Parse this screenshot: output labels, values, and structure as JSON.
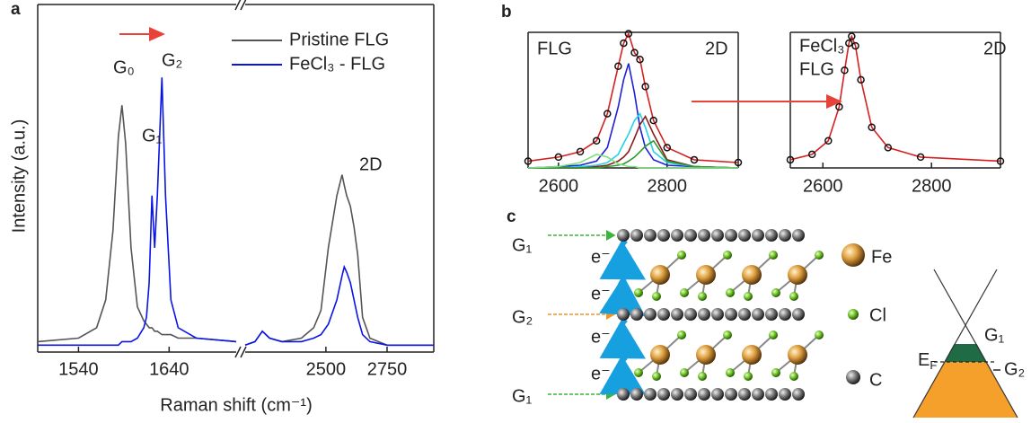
{
  "chart_data": [
    {
      "type": "line",
      "panel": "a",
      "xlabel": "Raman shift (cm⁻¹)",
      "ylabel": "Intensity (a.u.)",
      "legend": "upper right",
      "x": [
        1495,
        1540,
        1560,
        1570,
        1578,
        1584,
        1588,
        1592,
        1598,
        1605,
        1612,
        1615,
        1618,
        1621,
        1624,
        1627,
        1632,
        1636,
        1642,
        1650,
        1670,
        1714
      ],
      "xlim": [
        1495,
        1714
      ],
      "xticks": [
        1540,
        1640
      ],
      "ylim": [
        0,
        1
      ],
      "series": [
        {
          "name": "Pristine FLG",
          "color": "#555555",
          "values": [
            0.03,
            0.04,
            0.07,
            0.15,
            0.35,
            0.62,
            0.71,
            0.6,
            0.3,
            0.13,
            0.09,
            0.08,
            0.07,
            0.07,
            0.06,
            0.06,
            0.05,
            0.05,
            0.05,
            0.04,
            0.04,
            0.03
          ]
        },
        {
          "name": "FeCl₃ - FLG",
          "color": "#0a14e6",
          "values": [
            0.02,
            0.02,
            0.02,
            0.02,
            0.02,
            0.02,
            0.03,
            0.03,
            0.03,
            0.04,
            0.07,
            0.1,
            0.2,
            0.45,
            0.3,
            0.45,
            0.79,
            0.45,
            0.15,
            0.07,
            0.04,
            0.03
          ]
        }
      ],
      "annotations": [
        {
          "text": "G₀",
          "color": "#222222"
        },
        {
          "text": "G₂",
          "color": "#0a14e6"
        },
        {
          "text": "G₁",
          "color": "#0a14e6"
        }
      ]
    },
    {
      "type": "line",
      "x": [
        2170,
        2210,
        2240,
        2270,
        2320,
        2400,
        2450,
        2480,
        2510,
        2545,
        2566,
        2575,
        2585,
        2600,
        2615,
        2630,
        2650,
        2680,
        2750,
        2941
      ],
      "xlim": [
        2170,
        2941
      ],
      "xticks": [
        2500,
        2750
      ],
      "ylim": [
        0,
        1
      ],
      "series": [
        {
          "color": "#555555",
          "values": [
            0.02,
            0.03,
            0.06,
            0.04,
            0.03,
            0.04,
            0.07,
            0.12,
            0.3,
            0.45,
            0.51,
            0.48,
            0.45,
            0.42,
            0.36,
            0.28,
            0.1,
            0.04,
            0.02,
            0.02
          ]
        },
        {
          "color": "#0a14e6",
          "values": [
            0.02,
            0.03,
            0.06,
            0.04,
            0.03,
            0.03,
            0.04,
            0.05,
            0.08,
            0.15,
            0.22,
            0.245,
            0.23,
            0.2,
            0.15,
            0.1,
            0.05,
            0.03,
            0.02,
            0.02
          ]
        }
      ],
      "annotations": [
        {
          "text": "2D",
          "color": "#222222"
        }
      ]
    },
    {
      "type": "line",
      "panel": "b",
      "x": [
        2544,
        2600,
        2640,
        2670,
        2690,
        2710,
        2720,
        2729,
        2740,
        2750,
        2760,
        2775,
        2800,
        2850,
        2931
      ],
      "xlim": [
        2544,
        2931
      ],
      "xticks": [
        2600,
        2800
      ],
      "ylim": [
        0,
        1
      ],
      "series": [
        {
          "color": "#d62020",
          "values": [
            0.05,
            0.08,
            0.12,
            0.2,
            0.4,
            0.75,
            0.92,
            0.99,
            0.85,
            0.8,
            0.6,
            0.35,
            0.15,
            0.06,
            0.04
          ]
        },
        {
          "color": "#1f1fd6",
          "values": [
            0,
            0.01,
            0.02,
            0.05,
            0.15,
            0.45,
            0.65,
            0.77,
            0.55,
            0.3,
            0.15,
            0.06,
            0.02,
            0.01,
            0
          ]
        },
        {
          "color": "#22d3e6",
          "values": [
            0,
            0,
            0.01,
            0.02,
            0.04,
            0.1,
            0.18,
            0.25,
            0.35,
            0.4,
            0.3,
            0.12,
            0.04,
            0.01,
            0
          ]
        },
        {
          "color": "#8b1a1a",
          "values": [
            0,
            0,
            0,
            0.01,
            0.02,
            0.05,
            0.08,
            0.12,
            0.22,
            0.32,
            0.38,
            0.25,
            0.06,
            0.01,
            0
          ]
        },
        {
          "color": "#2e9a2e",
          "values": [
            0,
            0,
            0,
            0,
            0.01,
            0.02,
            0.03,
            0.05,
            0.08,
            0.12,
            0.16,
            0.2,
            0.05,
            0.01,
            0
          ]
        },
        {
          "color": "#7fe07f",
          "values": [
            0,
            0.01,
            0.04,
            0.1,
            0.08,
            0.03,
            0.02,
            0.01,
            0.01,
            0,
            0,
            0,
            0,
            0,
            0
          ]
        },
        {
          "color": "#111111",
          "marker": true,
          "values": [
            0.05,
            0.08,
            0.12,
            0.2,
            0.4,
            0.75,
            0.92,
            0.99,
            0.85,
            0.8,
            0.6,
            0.35,
            0.15,
            0.06,
            0.04
          ]
        }
      ],
      "annotations": [
        {
          "text": "FLG",
          "color": "#222222"
        },
        {
          "text": "2D",
          "color": "#222222"
        }
      ]
    },
    {
      "type": "line",
      "x": [
        2540,
        2580,
        2610,
        2630,
        2640,
        2648,
        2653,
        2660,
        2670,
        2690,
        2720,
        2780,
        2927
      ],
      "xlim": [
        2540,
        2927
      ],
      "xticks": [
        2600,
        2800
      ],
      "ylim": [
        0,
        1
      ],
      "series": [
        {
          "color": "#d62020",
          "values": [
            0.06,
            0.1,
            0.2,
            0.45,
            0.72,
            0.92,
            0.97,
            0.9,
            0.65,
            0.3,
            0.15,
            0.08,
            0.05
          ]
        },
        {
          "color": "#111111",
          "marker": true,
          "values": [
            0.06,
            0.1,
            0.2,
            0.45,
            0.72,
            0.92,
            0.97,
            0.9,
            0.65,
            0.3,
            0.15,
            0.08,
            0.05
          ]
        }
      ],
      "annotations": [
        {
          "text": "FeCl₃",
          "color": "#222222"
        },
        {
          "text": "FLG",
          "color": "#222222"
        },
        {
          "text": "2D",
          "color": "#222222"
        }
      ]
    }
  ],
  "diagram": {
    "panel": "c",
    "inputs": [
      "G₁",
      "G₂",
      "G₁"
    ],
    "electrons": [
      "e⁻",
      "e⁻",
      "e⁻",
      "e⁻"
    ],
    "legend": [
      "Fe",
      "Cl",
      "C"
    ],
    "cone": {
      "ef_main": "E",
      "ef_sub": "F",
      "g1": "G₁",
      "g2": "G₂"
    }
  }
}
